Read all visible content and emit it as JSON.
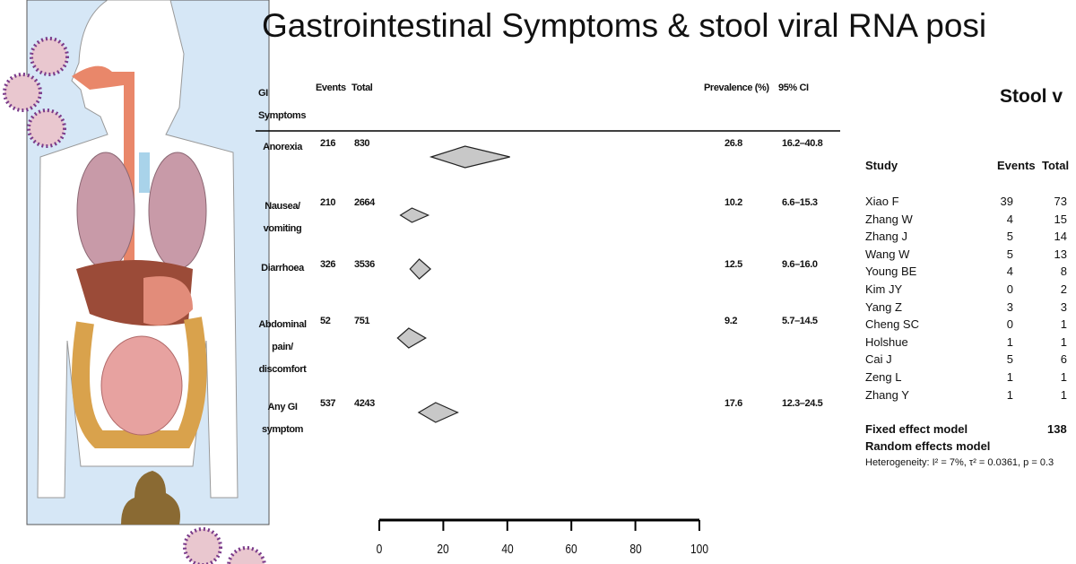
{
  "title": "Gastrointestinal Symptoms & stool viral RNA posi",
  "chart_data": {
    "type": "forest",
    "headers": [
      "GI Symptoms",
      "Events",
      "Total",
      "Prevalence (%)",
      "95% CI"
    ],
    "categories": [
      "Anorexia",
      "Nausea/ vomiting",
      "Diarrhoea",
      "Abdominal pain/ discomfort",
      "Any GI symptom"
    ],
    "events": [
      216,
      210,
      326,
      52,
      537
    ],
    "totals": [
      830,
      2664,
      3536,
      751,
      4243
    ],
    "values": [
      26.8,
      10.2,
      12.5,
      9.2,
      17.6
    ],
    "ci_low": [
      16.2,
      6.6,
      9.6,
      5.7,
      12.3
    ],
    "ci_high": [
      40.8,
      15.3,
      16.0,
      14.5,
      24.5
    ],
    "ci_labels": [
      "16.2–40.8",
      "6.6–15.3",
      "9.6–16.0",
      "5.7–14.5",
      "12.3–24.5"
    ],
    "color": "#c8c8c8",
    "xlim": [
      0,
      100
    ],
    "xticks": [
      0,
      20,
      40,
      60,
      80,
      100
    ]
  },
  "stool_table": {
    "title": "Stool v",
    "headers": [
      "Study",
      "Events",
      "Total"
    ],
    "rows": [
      [
        "Xiao F",
        39,
        73
      ],
      [
        "Zhang W",
        4,
        15
      ],
      [
        "Zhang J",
        5,
        14
      ],
      [
        "Wang W",
        5,
        13
      ],
      [
        "Young BE",
        4,
        8
      ],
      [
        "Kim JY",
        0,
        2
      ],
      [
        "Yang Z",
        3,
        3
      ],
      [
        "Cheng SC",
        0,
        1
      ],
      [
        "Holshue",
        1,
        1
      ],
      [
        "Cai J",
        5,
        6
      ],
      [
        "Zeng L",
        1,
        1
      ],
      [
        "Zhang Y",
        1,
        1
      ]
    ],
    "fixed_model": "Fixed effect model",
    "fixed_total": 138,
    "random_model": "Random effects model",
    "heterogeneity": "Heterogeneity: I² = 7%, τ² = 0.0361, p = 0.3"
  }
}
